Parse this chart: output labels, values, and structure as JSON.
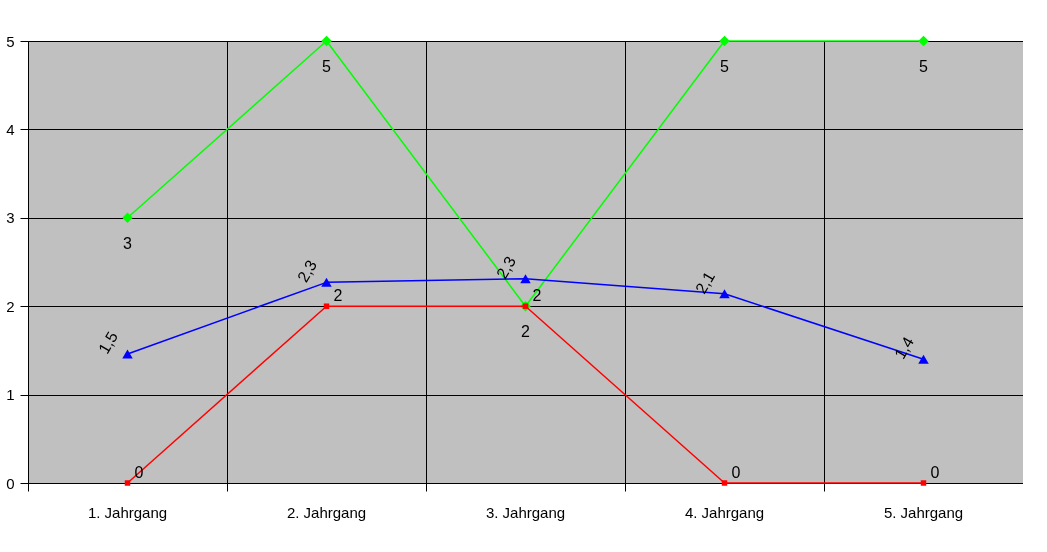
{
  "chart_data": {
    "type": "line",
    "categories": [
      "1. Jahrgang",
      "2. Jahrgang",
      "3. Jahrgang",
      "4. Jahrgang",
      "5. Jahrgang"
    ],
    "series": [
      {
        "color": "#00ff00",
        "marker": "diamond",
        "values": [
          3,
          5,
          2,
          5,
          5
        ],
        "value_labels": [
          "3",
          "5",
          "2",
          "5",
          "5"
        ]
      },
      {
        "color": "#ff0000",
        "marker": "square",
        "values": [
          0,
          2,
          2,
          0,
          0
        ],
        "value_labels": [
          "0",
          "2",
          "2",
          "0",
          "0"
        ]
      },
      {
        "color": "#0000ff",
        "marker": "triangle",
        "values": [
          1.46,
          2.27,
          2.31,
          2.14,
          1.4
        ],
        "value_labels": [
          "1,5",
          "2,3",
          "2,3",
          "2,1",
          "1,4"
        ]
      }
    ],
    "ylim": [
      0,
      5
    ],
    "yticks": [
      0,
      1,
      2,
      3,
      4,
      5
    ],
    "grid": true
  }
}
